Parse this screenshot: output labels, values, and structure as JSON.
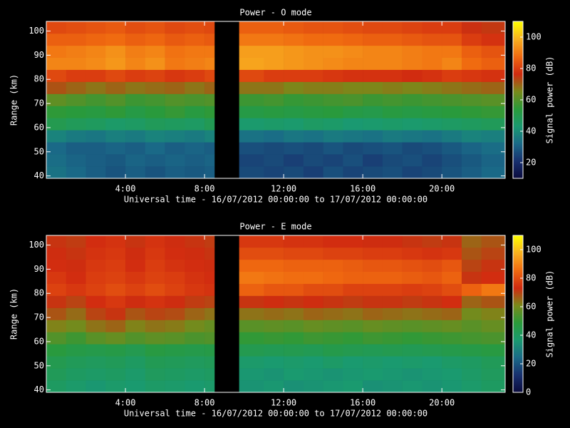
{
  "chart_data": [
    {
      "type": "heatmap",
      "title": "Power - O mode",
      "xlabel": "Universal time - 16/07/2012 00:00:00 to 17/07/2012 00:00:00",
      "ylabel": "Range (km)",
      "colorbar_label": "Signal power (dB)",
      "x_bins": [
        0,
        1,
        2,
        3,
        4,
        5,
        6,
        7,
        8,
        8.5,
        9.75,
        11,
        12,
        13,
        14,
        15,
        16,
        17,
        18,
        19,
        20,
        21,
        22,
        23.2
      ],
      "y_bins": [
        39,
        44,
        49,
        54,
        59,
        64,
        69,
        74,
        79,
        84,
        89,
        94,
        99,
        104
      ],
      "z": [
        [
          34,
          32,
          30,
          28,
          30,
          28,
          30,
          29,
          30,
          null,
          26,
          25,
          26,
          24,
          27,
          25,
          26,
          27,
          25,
          26,
          28,
          30,
          32
        ],
        [
          33,
          31,
          30,
          29,
          31,
          30,
          31,
          30,
          31,
          null,
          25,
          26,
          24,
          26,
          25,
          27,
          24,
          26,
          27,
          25,
          27,
          29,
          31
        ],
        [
          32,
          30,
          30,
          31,
          30,
          32,
          30,
          31,
          30,
          null,
          27,
          26,
          27,
          26,
          28,
          26,
          27,
          28,
          26,
          27,
          29,
          31,
          33
        ],
        [
          38,
          36,
          35,
          37,
          36,
          38,
          37,
          36,
          38,
          null,
          34,
          33,
          35,
          34,
          36,
          35,
          34,
          36,
          35,
          34,
          36,
          38,
          37
        ],
        [
          50,
          48,
          47,
          45,
          46,
          48,
          47,
          46,
          49,
          null,
          44,
          45,
          44,
          46,
          45,
          43,
          44,
          45,
          44,
          45,
          46,
          47,
          48
        ],
        [
          55,
          54,
          53,
          55,
          52,
          54,
          56,
          53,
          55,
          null,
          52,
          53,
          52,
          53,
          54,
          52,
          51,
          53,
          52,
          53,
          54,
          55,
          56
        ],
        [
          62,
          60,
          58,
          60,
          57,
          58,
          60,
          59,
          60,
          null,
          57,
          58,
          56,
          57,
          58,
          59,
          57,
          58,
          57,
          58,
          59,
          60,
          61
        ],
        [
          72,
          70,
          68,
          70,
          68,
          69,
          70,
          68,
          70,
          null,
          68,
          68,
          66,
          67,
          67,
          66,
          66,
          67,
          66,
          67,
          68,
          69,
          70
        ],
        [
          82,
          80,
          80,
          82,
          80,
          81,
          79,
          80,
          82,
          null,
          82,
          80,
          80,
          80,
          79,
          78,
          78,
          78,
          77,
          78,
          80,
          79,
          78
        ],
        [
          92,
          92,
          93,
          95,
          92,
          94,
          90,
          91,
          92,
          null,
          97,
          96,
          95,
          94,
          93,
          92,
          92,
          92,
          91,
          90,
          92,
          88,
          86
        ],
        [
          90,
          91,
          92,
          94,
          91,
          92,
          89,
          90,
          90,
          null,
          96,
          96,
          95,
          94,
          94,
          93,
          92,
          92,
          91,
          90,
          90,
          86,
          84
        ],
        [
          86,
          86,
          87,
          88,
          86,
          87,
          85,
          86,
          85,
          null,
          90,
          90,
          89,
          88,
          88,
          87,
          86,
          86,
          85,
          84,
          84,
          80,
          78
        ],
        [
          82,
          83,
          84,
          85,
          83,
          84,
          82,
          83,
          82,
          null,
          86,
          86,
          85,
          84,
          84,
          83,
          82,
          82,
          81,
          80,
          80,
          76,
          75
        ]
      ],
      "xlim": [
        0,
        23.2
      ],
      "ylim": [
        39,
        104
      ],
      "xticks": [
        {
          "value": 4,
          "label": "4:00"
        },
        {
          "value": 8,
          "label": "8:00"
        },
        {
          "value": 12,
          "label": "12:00"
        },
        {
          "value": 16,
          "label": "16:00"
        },
        {
          "value": 20,
          "label": "20:00"
        }
      ],
      "yticks": [
        40,
        50,
        60,
        70,
        80,
        90,
        100
      ],
      "zlim": [
        10,
        110
      ],
      "zticks": [
        20,
        40,
        60,
        80,
        100
      ],
      "colorscale": [
        "#0a0a3c",
        "#18306e",
        "#1a6a88",
        "#1a9a70",
        "#2a9a3a",
        "#7a8a1a",
        "#d02a10",
        "#f06a10",
        "#f8b020",
        "#ffff00"
      ]
    },
    {
      "type": "heatmap",
      "title": "Power - E mode",
      "xlabel": "Universal time - 16/07/2012 00:00:00 to 17/07/2012 00:00:00",
      "ylabel": "Range (km)",
      "colorbar_label": "Signal power (dB)",
      "x_bins": [
        0,
        1,
        2,
        3,
        4,
        5,
        6,
        7,
        8,
        8.5,
        9.75,
        11,
        12,
        13,
        14,
        15,
        16,
        17,
        18,
        19,
        20,
        21,
        22,
        23.2
      ],
      "y_bins": [
        39,
        44,
        49,
        54,
        59,
        64,
        69,
        74,
        79,
        84,
        89,
        94,
        99,
        104
      ],
      "z": [
        [
          40,
          38,
          36,
          38,
          37,
          39,
          38,
          37,
          38,
          null,
          35,
          36,
          34,
          35,
          36,
          37,
          34,
          35,
          36,
          35,
          36,
          38,
          40
        ],
        [
          42,
          40,
          39,
          40,
          38,
          41,
          40,
          39,
          40,
          null,
          36,
          35,
          37,
          36,
          35,
          36,
          37,
          36,
          35,
          36,
          37,
          39,
          41
        ],
        [
          44,
          42,
          41,
          42,
          40,
          43,
          42,
          41,
          42,
          null,
          38,
          37,
          38,
          37,
          39,
          37,
          38,
          37,
          38,
          37,
          39,
          40,
          42
        ],
        [
          48,
          46,
          45,
          46,
          44,
          47,
          46,
          45,
          46,
          null,
          44,
          43,
          44,
          43,
          45,
          44,
          43,
          44,
          43,
          44,
          45,
          46,
          47
        ],
        [
          55,
          52,
          56,
          58,
          55,
          57,
          56,
          54,
          55,
          null,
          50,
          51,
          50,
          52,
          51,
          50,
          52,
          51,
          50,
          51,
          52,
          53,
          54
        ],
        [
          62,
          60,
          64,
          66,
          62,
          64,
          63,
          60,
          58,
          null,
          56,
          57,
          56,
          58,
          57,
          56,
          58,
          57,
          56,
          57,
          58,
          56,
          58
        ],
        [
          68,
          65,
          70,
          72,
          68,
          70,
          69,
          66,
          64,
          null,
          64,
          65,
          64,
          66,
          65,
          64,
          66,
          65,
          64,
          65,
          66,
          60,
          62
        ],
        [
          72,
          70,
          74,
          76,
          73,
          75,
          73,
          71,
          70,
          null,
          72,
          73,
          72,
          73,
          72,
          71,
          72,
          72,
          71,
          72,
          74,
          66,
          68
        ],
        [
          78,
          76,
          78,
          80,
          78,
          80,
          78,
          76,
          75,
          null,
          84,
          82,
          82,
          80,
          80,
          78,
          78,
          78,
          77,
          78,
          80,
          84,
          88
        ],
        [
          76,
          74,
          77,
          78,
          76,
          78,
          77,
          75,
          74,
          null,
          88,
          87,
          86,
          86,
          85,
          84,
          84,
          84,
          83,
          82,
          84,
          72,
          74
        ],
        [
          74,
          73,
          76,
          77,
          74,
          77,
          75,
          74,
          73,
          null,
          85,
          85,
          84,
          84,
          84,
          83,
          82,
          82,
          81,
          80,
          82,
          70,
          72
        ],
        [
          73,
          72,
          75,
          76,
          73,
          76,
          74,
          73,
          72,
          null,
          80,
          80,
          79,
          79,
          78,
          78,
          77,
          77,
          76,
          75,
          76,
          68,
          70
        ],
        [
          72,
          71,
          74,
          75,
          72,
          75,
          73,
          72,
          71,
          null,
          76,
          76,
          75,
          75,
          74,
          74,
          73,
          73,
          72,
          71,
          72,
          66,
          68
        ]
      ],
      "xlim": [
        0,
        23.2
      ],
      "ylim": [
        39,
        104
      ],
      "xticks": [
        {
          "value": 4,
          "label": "4:00"
        },
        {
          "value": 8,
          "label": "8:00"
        },
        {
          "value": 12,
          "label": "12:00"
        },
        {
          "value": 16,
          "label": "16:00"
        },
        {
          "value": 20,
          "label": "20:00"
        }
      ],
      "yticks": [
        40,
        50,
        60,
        70,
        80,
        90,
        100
      ],
      "zlim": [
        0,
        110
      ],
      "zticks": [
        0,
        20,
        40,
        60,
        80,
        100
      ],
      "colorscale": [
        "#0a0a3c",
        "#18306e",
        "#1a6a88",
        "#1a9a70",
        "#2a9a3a",
        "#7a8a1a",
        "#d02a10",
        "#f06a10",
        "#f8b020",
        "#ffff00"
      ]
    }
  ]
}
